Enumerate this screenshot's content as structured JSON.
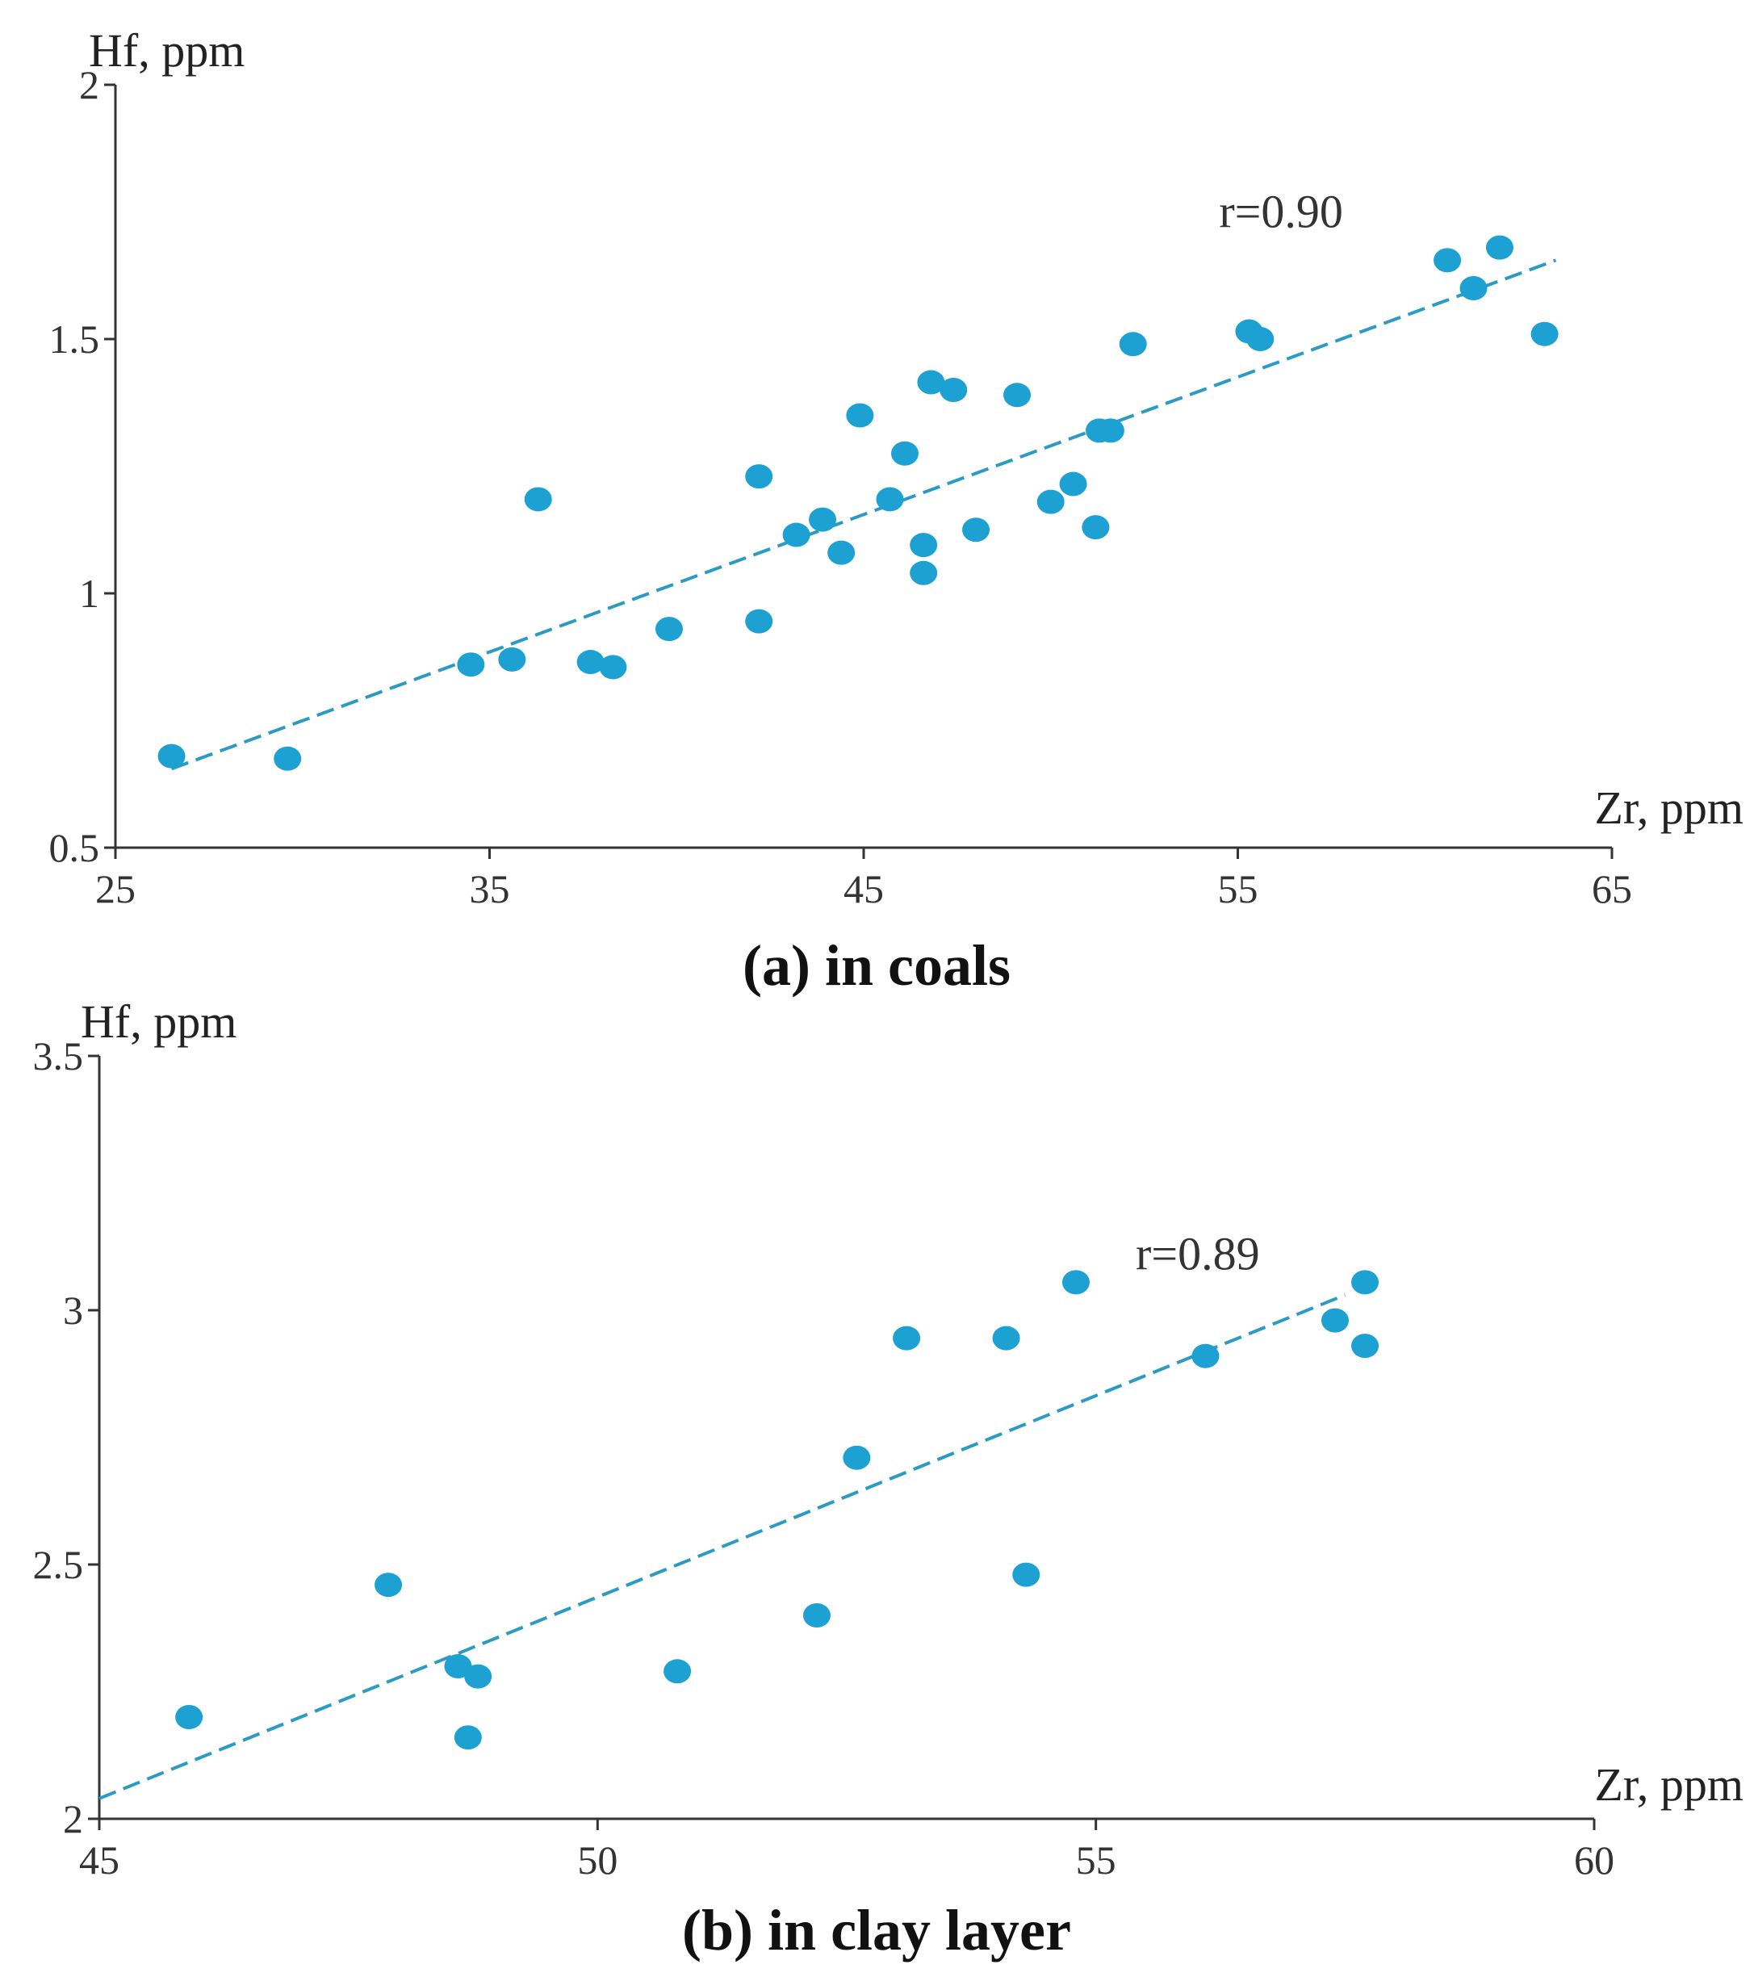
{
  "colors": {
    "point": "#1DA1D2",
    "trend": "#2B9BC4"
  },
  "chart_data": [
    {
      "id": "coals",
      "type": "scatter",
      "caption": "(a) in coals",
      "xlabel": "Zr, ppm",
      "ylabel": "Hf, ppm",
      "xlim": [
        25,
        65
      ],
      "ylim": [
        0.5,
        2
      ],
      "xticks": [
        25,
        35,
        45,
        55,
        65
      ],
      "yticks": [
        0.5,
        1,
        1.5,
        2
      ],
      "xtick_labels": [
        "25",
        "35",
        "45",
        "55",
        "65"
      ],
      "ytick_labels": [
        "0.5",
        "1",
        "1.5",
        "2"
      ],
      "annotation": {
        "text": "r=0.90",
        "x": 54.5,
        "y": 1.72
      },
      "trendline": {
        "x": [
          26.5,
          63.5
        ],
        "y": [
          0.655,
          1.655
        ]
      },
      "points": [
        {
          "x": 26.5,
          "y": 0.68
        },
        {
          "x": 29.6,
          "y": 0.675
        },
        {
          "x": 34.5,
          "y": 0.86
        },
        {
          "x": 35.6,
          "y": 0.87
        },
        {
          "x": 36.3,
          "y": 1.185
        },
        {
          "x": 37.7,
          "y": 0.865
        },
        {
          "x": 38.3,
          "y": 0.855
        },
        {
          "x": 39.8,
          "y": 0.93
        },
        {
          "x": 42.2,
          "y": 0.945
        },
        {
          "x": 42.2,
          "y": 1.23
        },
        {
          "x": 43.2,
          "y": 1.115
        },
        {
          "x": 43.9,
          "y": 1.145
        },
        {
          "x": 44.4,
          "y": 1.08
        },
        {
          "x": 44.9,
          "y": 1.35
        },
        {
          "x": 45.7,
          "y": 1.185
        },
        {
          "x": 46.1,
          "y": 1.275
        },
        {
          "x": 46.6,
          "y": 1.04
        },
        {
          "x": 46.6,
          "y": 1.095
        },
        {
          "x": 46.8,
          "y": 1.415
        },
        {
          "x": 47.4,
          "y": 1.4
        },
        {
          "x": 48.0,
          "y": 1.125
        },
        {
          "x": 49.1,
          "y": 1.39
        },
        {
          "x": 50.0,
          "y": 1.18
        },
        {
          "x": 50.6,
          "y": 1.215
        },
        {
          "x": 51.2,
          "y": 1.13
        },
        {
          "x": 51.3,
          "y": 1.32
        },
        {
          "x": 51.6,
          "y": 1.32
        },
        {
          "x": 52.2,
          "y": 1.49
        },
        {
          "x": 55.3,
          "y": 1.515
        },
        {
          "x": 55.6,
          "y": 1.5
        },
        {
          "x": 60.6,
          "y": 1.655
        },
        {
          "x": 61.3,
          "y": 1.6
        },
        {
          "x": 62.0,
          "y": 1.68
        },
        {
          "x": 63.2,
          "y": 1.51
        }
      ]
    },
    {
      "id": "clay",
      "type": "scatter",
      "caption": "(b) in clay layer",
      "xlabel": "Zr, ppm",
      "ylabel": "Hf, ppm",
      "xlim": [
        45,
        60
      ],
      "ylim": [
        2,
        3.5
      ],
      "xticks": [
        45,
        50,
        55,
        60
      ],
      "yticks": [
        2,
        2.5,
        3,
        3.5
      ],
      "xtick_labels": [
        "45",
        "50",
        "55",
        "60"
      ],
      "ytick_labels": [
        "2",
        "2.5",
        "3",
        "3.5"
      ],
      "annotation": {
        "text": "r=0.89",
        "x": 55.4,
        "y": 3.08
      },
      "trendline": {
        "x": [
          45.0,
          57.5
        ],
        "y": [
          2.04,
          3.03
        ]
      },
      "points": [
        {
          "x": 45.9,
          "y": 2.2
        },
        {
          "x": 47.9,
          "y": 2.46
        },
        {
          "x": 48.6,
          "y": 2.3
        },
        {
          "x": 48.7,
          "y": 2.16
        },
        {
          "x": 48.8,
          "y": 2.28
        },
        {
          "x": 50.8,
          "y": 2.29
        },
        {
          "x": 52.2,
          "y": 2.4
        },
        {
          "x": 52.6,
          "y": 2.71
        },
        {
          "x": 53.1,
          "y": 2.945
        },
        {
          "x": 54.1,
          "y": 2.945
        },
        {
          "x": 54.3,
          "y": 2.48
        },
        {
          "x": 54.8,
          "y": 3.055
        },
        {
          "x": 56.1,
          "y": 2.91
        },
        {
          "x": 57.4,
          "y": 2.98
        },
        {
          "x": 57.7,
          "y": 3.055
        },
        {
          "x": 57.7,
          "y": 2.93
        }
      ]
    }
  ]
}
